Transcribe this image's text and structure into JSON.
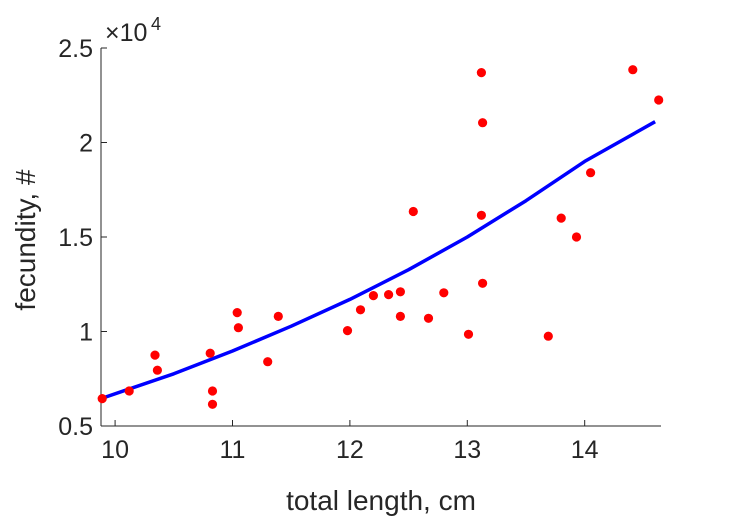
{
  "chart_data": {
    "type": "scatter",
    "title": "",
    "xlabel": "total length, cm",
    "ylabel": "fecundity, #",
    "y_exponent_base": "×10",
    "y_exponent_power": "4",
    "xlim": [
      9.88,
      14.65
    ],
    "ylim": [
      0.5,
      2.5
    ],
    "x_ticks": [
      10,
      11,
      12,
      13,
      14
    ],
    "x_tick_labels": [
      "10",
      "11",
      "12",
      "13",
      "14"
    ],
    "y_ticks": [
      0.5,
      1,
      1.5,
      2,
      2.5
    ],
    "y_tick_labels": [
      "0.5",
      "1",
      "1.5",
      "2",
      "2.5"
    ],
    "grid": false,
    "legend": "none",
    "series": [
      {
        "kind": "scatter",
        "color": "#ff0000",
        "points": [
          [
            9.89,
            0.645
          ],
          [
            10.12,
            0.685
          ],
          [
            10.34,
            0.875
          ],
          [
            10.36,
            0.795
          ],
          [
            10.81,
            0.885
          ],
          [
            10.83,
            0.685
          ],
          [
            10.83,
            0.615
          ],
          [
            11.04,
            1.1
          ],
          [
            11.05,
            1.02
          ],
          [
            11.3,
            0.84
          ],
          [
            11.39,
            1.08
          ],
          [
            11.98,
            1.005
          ],
          [
            12.09,
            1.115
          ],
          [
            12.2,
            1.19
          ],
          [
            12.33,
            1.195
          ],
          [
            12.43,
            1.21
          ],
          [
            12.43,
            1.08
          ],
          [
            12.54,
            1.635
          ],
          [
            12.67,
            1.07
          ],
          [
            12.8,
            1.205
          ],
          [
            13.01,
            0.985
          ],
          [
            13.12,
            2.37
          ],
          [
            13.12,
            1.615
          ],
          [
            13.13,
            2.105
          ],
          [
            13.13,
            1.255
          ],
          [
            13.69,
            0.975
          ],
          [
            13.8,
            1.6
          ],
          [
            13.93,
            1.5
          ],
          [
            14.05,
            1.84
          ],
          [
            14.41,
            2.385
          ],
          [
            14.63,
            2.225
          ]
        ]
      },
      {
        "kind": "line",
        "color": "#0000ff",
        "fit": "exponential",
        "points": [
          [
            9.88,
            0.645
          ],
          [
            10.5,
            0.776
          ],
          [
            11.0,
            0.897
          ],
          [
            11.5,
            1.028
          ],
          [
            12.0,
            1.17
          ],
          [
            12.5,
            1.327
          ],
          [
            13.0,
            1.5
          ],
          [
            13.5,
            1.692
          ],
          [
            14.0,
            1.9
          ],
          [
            14.6,
            2.11
          ]
        ]
      }
    ]
  }
}
